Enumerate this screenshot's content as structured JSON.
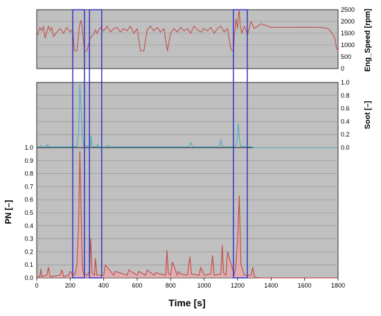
{
  "chart_data": {
    "type": "line",
    "xlabel": "Time [s]",
    "xlim": [
      0,
      1800
    ],
    "xticks": [
      0,
      200,
      400,
      600,
      800,
      1000,
      1200,
      1400,
      1600,
      1800
    ],
    "panels": [
      {
        "id": "eng_speed",
        "ylabel": "Eng_Speed [rpm]",
        "ylim": [
          0,
          2500
        ],
        "yticks": [
          0,
          500,
          1000,
          1500,
          2000,
          2500
        ],
        "series": [
          {
            "color": "#c0504d",
            "x": [
              0,
              10,
              20,
              30,
              40,
              50,
              60,
              70,
              80,
              90,
              100,
              120,
              140,
              160,
              180,
              200,
              215,
              225,
              240,
              255,
              265,
              275,
              285,
              300,
              320,
              340,
              350,
              360,
              380,
              400,
              420,
              440,
              460,
              480,
              500,
              520,
              540,
              560,
              580,
              600,
              620,
              640,
              660,
              680,
              700,
              720,
              740,
              760,
              780,
              800,
              820,
              840,
              860,
              880,
              900,
              920,
              940,
              960,
              980,
              1000,
              1020,
              1040,
              1060,
              1080,
              1100,
              1120,
              1140,
              1160,
              1175,
              1180,
              1190,
              1200,
              1205,
              1210,
              1215,
              1225,
              1240,
              1260,
              1280,
              1300,
              1340,
              1400,
              1500,
              1600,
              1700,
              1740,
              1760,
              1780,
              1790,
              1800
            ],
            "y": [
              1350,
              1550,
              1750,
              1600,
              1800,
              1300,
              1550,
              1800,
              1600,
              1750,
              1350,
              1550,
              1700,
              1500,
              1750,
              1550,
              1700,
              750,
              750,
              1800,
              2050,
              1500,
              750,
              750,
              1300,
              1450,
              1650,
              1500,
              1750,
              1600,
              1800,
              1550,
              1700,
              1750,
              1550,
              1700,
              1600,
              1800,
              1500,
              1700,
              750,
              750,
              1650,
              1800,
              1600,
              1750,
              1550,
              1700,
              750,
              1500,
              1700,
              1550,
              1750,
              1600,
              1700,
              1500,
              1800,
              1650,
              1550,
              1700,
              1600,
              1750,
              1500,
              1700,
              1800,
              1550,
              1700,
              800,
              750,
              1350,
              2100,
              1700,
              2350,
              2450,
              1900,
              1500,
              1800,
              1450,
              2000,
              1700,
              1900,
              1750,
              1750,
              1760,
              1750,
              1700,
              1550,
              1300,
              900,
              750
            ]
          }
        ]
      },
      {
        "id": "soot",
        "ylabel": "Soot [–]",
        "ylim": [
          0,
          1.0
        ],
        "yticks": [
          "0.0",
          "0.2",
          "0.4",
          "0.6",
          "0.8",
          "1.0"
        ],
        "series": [
          {
            "color": "#4bacc6",
            "x": [
              0,
              20,
              25,
              30,
              60,
              65,
              70,
              200,
              240,
              250,
              258,
              265,
              272,
              280,
              300,
              320,
              325,
              330,
              360,
              365,
              370,
              420,
              425,
              430,
              910,
              920,
              928,
              936,
              1000,
              1090,
              1100,
              1108,
              1120,
              1185,
              1195,
              1205,
              1212,
              1220,
              1250,
              1260,
              1265,
              1300,
              1800
            ],
            "y": [
              0.01,
              0.01,
              0.03,
              0.01,
              0.01,
              0.05,
              0.01,
              0.01,
              0.02,
              0.2,
              0.97,
              0.6,
              0.2,
              0.03,
              0.02,
              0.02,
              0.18,
              0.02,
              0.01,
              0.06,
              0.01,
              0.01,
              0.04,
              0.01,
              0.01,
              0.08,
              0.02,
              0.01,
              0.01,
              0.01,
              0.12,
              0.02,
              0.01,
              0.01,
              0.08,
              0.37,
              0.1,
              0.02,
              0.01,
              0.01,
              0.02,
              0.0,
              0.0
            ]
          }
        ]
      },
      {
        "id": "pn",
        "ylabel": "PN [–]",
        "ylim": [
          0,
          1.0
        ],
        "yticks": [
          "0.0",
          "0.1",
          "0.2",
          "0.3",
          "0.4",
          "0.5",
          "0.6",
          "0.7",
          "0.8",
          "0.9",
          "1.0"
        ],
        "series": [
          {
            "color": "#c0504d",
            "x": [
              0,
              20,
              25,
              30,
              60,
              70,
              80,
              140,
              150,
              160,
              190,
              200,
              220,
              230,
              240,
              250,
              258,
              265,
              272,
              280,
              300,
              315,
              322,
              330,
              345,
              350,
              360,
              400,
              410,
              460,
              470,
              540,
              550,
              600,
              610,
              650,
              660,
              700,
              710,
              770,
              778,
              786,
              800,
              810,
              840,
              850,
              860,
              900,
              915,
              925,
              970,
              980,
              1000,
              1040,
              1050,
              1060,
              1100,
              1108,
              1116,
              1130,
              1140,
              1180,
              1190,
              1200,
              1210,
              1220,
              1240,
              1280,
              1290,
              1300,
              1320,
              1800
            ],
            "y": [
              0.01,
              0.01,
              0.07,
              0.01,
              0.02,
              0.08,
              0.01,
              0.02,
              0.06,
              0.01,
              0.02,
              0.05,
              0.02,
              0.03,
              0.1,
              0.4,
              0.97,
              0.55,
              0.1,
              0.03,
              0.02,
              0.05,
              0.3,
              0.04,
              0.02,
              0.15,
              0.02,
              0.02,
              0.1,
              0.02,
              0.05,
              0.02,
              0.06,
              0.02,
              0.05,
              0.02,
              0.06,
              0.02,
              0.04,
              0.02,
              0.21,
              0.04,
              0.02,
              0.12,
              0.02,
              0.05,
              0.03,
              0.02,
              0.16,
              0.03,
              0.02,
              0.08,
              0.02,
              0.03,
              0.17,
              0.02,
              0.03,
              0.25,
              0.04,
              0.02,
              0.2,
              0.02,
              0.1,
              0.3,
              0.63,
              0.1,
              0.02,
              0.02,
              0.08,
              0.01,
              0.0,
              0.0
            ]
          }
        ]
      }
    ],
    "highlight_windows": [
      {
        "x": [
          215,
          285
        ],
        "color": "#3333cc"
      },
      {
        "x": [
          315,
          388
        ],
        "color": "#3333cc"
      },
      {
        "x": [
          1175,
          1258
        ],
        "color": "#3333cc"
      }
    ],
    "grid": true,
    "plot_background": "#c0c0c0"
  }
}
